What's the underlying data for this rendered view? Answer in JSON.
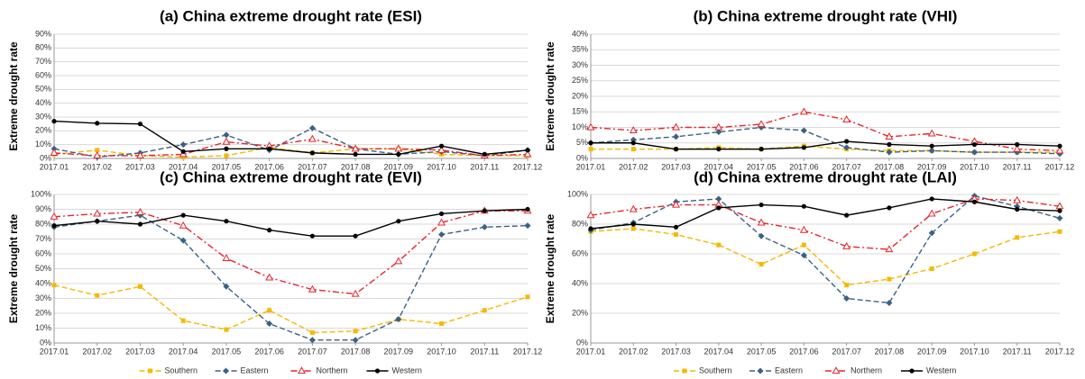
{
  "chart_data": [
    {
      "type": "line",
      "title": "(a) China extreme drought rate (ESI)",
      "y_label": "Extreme drought rate",
      "categories": [
        "2017.01",
        "2017.02",
        "2017.03",
        "2017.04",
        "2017.05",
        "2017.06",
        "2017.07",
        "2017.08",
        "2017.09",
        "2017.10",
        "2017.11",
        "2017.12"
      ],
      "ylim": [
        0,
        90
      ],
      "yticks": [
        {
          "value": 0,
          "label": "0%"
        },
        {
          "value": 10,
          "label": "10%"
        },
        {
          "value": 20,
          "label": "20%"
        },
        {
          "value": 30,
          "label": "30%"
        },
        {
          "value": 40,
          "label": "40%"
        },
        {
          "value": 50,
          "label": "50%"
        },
        {
          "value": 60,
          "label": "60%"
        },
        {
          "value": 70,
          "label": "70%"
        },
        {
          "value": 80,
          "label": "80%"
        },
        {
          "value": 90,
          "label": "90%"
        }
      ],
      "grid": true,
      "series": [
        {
          "name": "Southern",
          "color": "#f5b800",
          "marker": "square",
          "line_style": "dashed",
          "values": [
            3,
            6,
            2,
            1,
            2,
            8,
            4,
            7,
            7,
            3,
            2,
            2
          ]
        },
        {
          "name": "Eastern",
          "color": "#3a6186",
          "marker": "diamond",
          "line_style": "dashed",
          "values": [
            7,
            1,
            4,
            10,
            17,
            6,
            22,
            7,
            3,
            5,
            2,
            6
          ]
        },
        {
          "name": "Northern",
          "color": "#e8232a",
          "marker": "triangle",
          "line_style": "dashdot",
          "values": [
            4,
            2,
            2,
            3,
            12,
            9,
            14,
            7,
            7,
            6,
            2,
            3
          ]
        },
        {
          "name": "Western",
          "color": "#000000",
          "marker": "circle",
          "line_style": "solid",
          "values": [
            27,
            25.5,
            25,
            5,
            7,
            7,
            4,
            3,
            3,
            9,
            3,
            6
          ]
        }
      ]
    },
    {
      "type": "line",
      "title": "(b) China extreme drought rate (VHI)",
      "y_label": "Extreme drought rate",
      "categories": [
        "2017.01",
        "2017.02",
        "2017.03",
        "2017.04",
        "2017.05",
        "2017.06",
        "2017.07",
        "2017.08",
        "2017.09",
        "2017.10",
        "2017.11",
        "2017.12"
      ],
      "ylim": [
        0,
        40
      ],
      "yticks": [
        {
          "value": 0,
          "label": "0%"
        },
        {
          "value": 5,
          "label": "5%"
        },
        {
          "value": 10,
          "label": "10%"
        },
        {
          "value": 15,
          "label": "15%"
        },
        {
          "value": 20,
          "label": "20%"
        },
        {
          "value": 25,
          "label": "25%"
        },
        {
          "value": 30,
          "label": "30%"
        },
        {
          "value": 35,
          "label": "35%"
        },
        {
          "value": 40,
          "label": "40%"
        }
      ],
      "grid": true,
      "series": [
        {
          "name": "Southern",
          "color": "#f5b800",
          "marker": "square",
          "line_style": "dashed",
          "values": [
            3,
            3,
            3,
            3.5,
            3,
            4,
            3,
            2.5,
            2.5,
            2,
            2,
            2
          ]
        },
        {
          "name": "Eastern",
          "color": "#3a6186",
          "marker": "diamond",
          "line_style": "dashed",
          "values": [
            5,
            6,
            7,
            8.5,
            10,
            9,
            3.5,
            2,
            2.5,
            2,
            2,
            1.5
          ]
        },
        {
          "name": "Northern",
          "color": "#e8232a",
          "marker": "triangle",
          "line_style": "dashdot",
          "values": [
            10,
            9,
            10,
            10,
            11,
            15,
            12.5,
            7,
            8,
            5.5,
            3,
            2.5
          ]
        },
        {
          "name": "Western",
          "color": "#000000",
          "marker": "circle",
          "line_style": "solid",
          "values": [
            5,
            5,
            3,
            3,
            3,
            3.5,
            5.5,
            4.5,
            4,
            4.5,
            4.5,
            4
          ]
        }
      ]
    },
    {
      "type": "line",
      "title": "(c) China extreme drought rate (EVI)",
      "y_label": "Extreme drought rate",
      "categories": [
        "2017.01",
        "2017.02",
        "2017.03",
        "2017.04",
        "2017.05",
        "2017.06",
        "2017.07",
        "2017.08",
        "2017.09",
        "2017.10",
        "2017.11",
        "2017.12"
      ],
      "ylim": [
        0,
        100
      ],
      "yticks": [
        {
          "value": 0,
          "label": "0%"
        },
        {
          "value": 10,
          "label": "10%"
        },
        {
          "value": 20,
          "label": "20%"
        },
        {
          "value": 30,
          "label": "30%"
        },
        {
          "value": 40,
          "label": "40%"
        },
        {
          "value": 50,
          "label": "50%"
        },
        {
          "value": 60,
          "label": "60%"
        },
        {
          "value": 70,
          "label": "70%"
        },
        {
          "value": 80,
          "label": "80%"
        },
        {
          "value": 90,
          "label": "90%"
        },
        {
          "value": 100,
          "label": "100%"
        }
      ],
      "grid": true,
      "legend": "bottom",
      "series": [
        {
          "name": "Southern",
          "color": "#f5b800",
          "marker": "square",
          "line_style": "dashed",
          "values": [
            39,
            32,
            38,
            15,
            9,
            22,
            7,
            8,
            16,
            13,
            22,
            31
          ]
        },
        {
          "name": "Eastern",
          "color": "#3a6186",
          "marker": "diamond",
          "line_style": "dashed",
          "values": [
            78,
            82,
            86,
            69,
            38,
            13,
            2,
            2,
            16,
            73,
            78,
            79
          ]
        },
        {
          "name": "Northern",
          "color": "#e8232a",
          "marker": "triangle",
          "line_style": "dashdot",
          "values": [
            85,
            87,
            88,
            79,
            57,
            44,
            36,
            33,
            55,
            81,
            89,
            89
          ]
        },
        {
          "name": "Western",
          "color": "#000000",
          "marker": "circle",
          "line_style": "solid",
          "values": [
            79,
            82,
            80,
            86,
            82,
            76,
            72,
            72,
            82,
            87,
            89,
            90
          ]
        }
      ]
    },
    {
      "type": "line",
      "title": "(d) China extreme drought rate (LAI)",
      "y_label": "Extreme drought rate",
      "categories": [
        "2017.01",
        "2017.02",
        "2017.03",
        "2017.04",
        "2017.05",
        "2017.06",
        "2017.07",
        "2017.08",
        "2017.09",
        "2017.10",
        "2017.11",
        "2017.12"
      ],
      "ylim": [
        0,
        100
      ],
      "yticks": [
        {
          "value": 0,
          "label": "0%"
        },
        {
          "value": 20,
          "label": "20%"
        },
        {
          "value": 40,
          "label": "40%"
        },
        {
          "value": 60,
          "label": "60%"
        },
        {
          "value": 80,
          "label": "80%"
        },
        {
          "value": 100,
          "label": "100%"
        }
      ],
      "grid": true,
      "legend": "bottom",
      "series": [
        {
          "name": "Southern",
          "color": "#f5b800",
          "marker": "square",
          "line_style": "dashed",
          "values": [
            75,
            77,
            73,
            66,
            53,
            66,
            39,
            43,
            50,
            60,
            71,
            75
          ]
        },
        {
          "name": "Eastern",
          "color": "#3a6186",
          "marker": "diamond",
          "line_style": "dashed",
          "values": [
            76,
            81,
            95,
            97,
            72,
            59,
            30,
            27,
            74,
            99,
            92,
            84
          ]
        },
        {
          "name": "Northern",
          "color": "#e8232a",
          "marker": "triangle",
          "line_style": "dashdot",
          "values": [
            86,
            90,
            93,
            93,
            81,
            76,
            65,
            63,
            87,
            97,
            96,
            92
          ]
        },
        {
          "name": "Western",
          "color": "#000000",
          "marker": "circle",
          "line_style": "solid",
          "values": [
            77,
            80,
            78,
            91,
            93,
            92,
            86,
            91,
            97,
            95,
            90,
            89
          ]
        }
      ]
    }
  ]
}
